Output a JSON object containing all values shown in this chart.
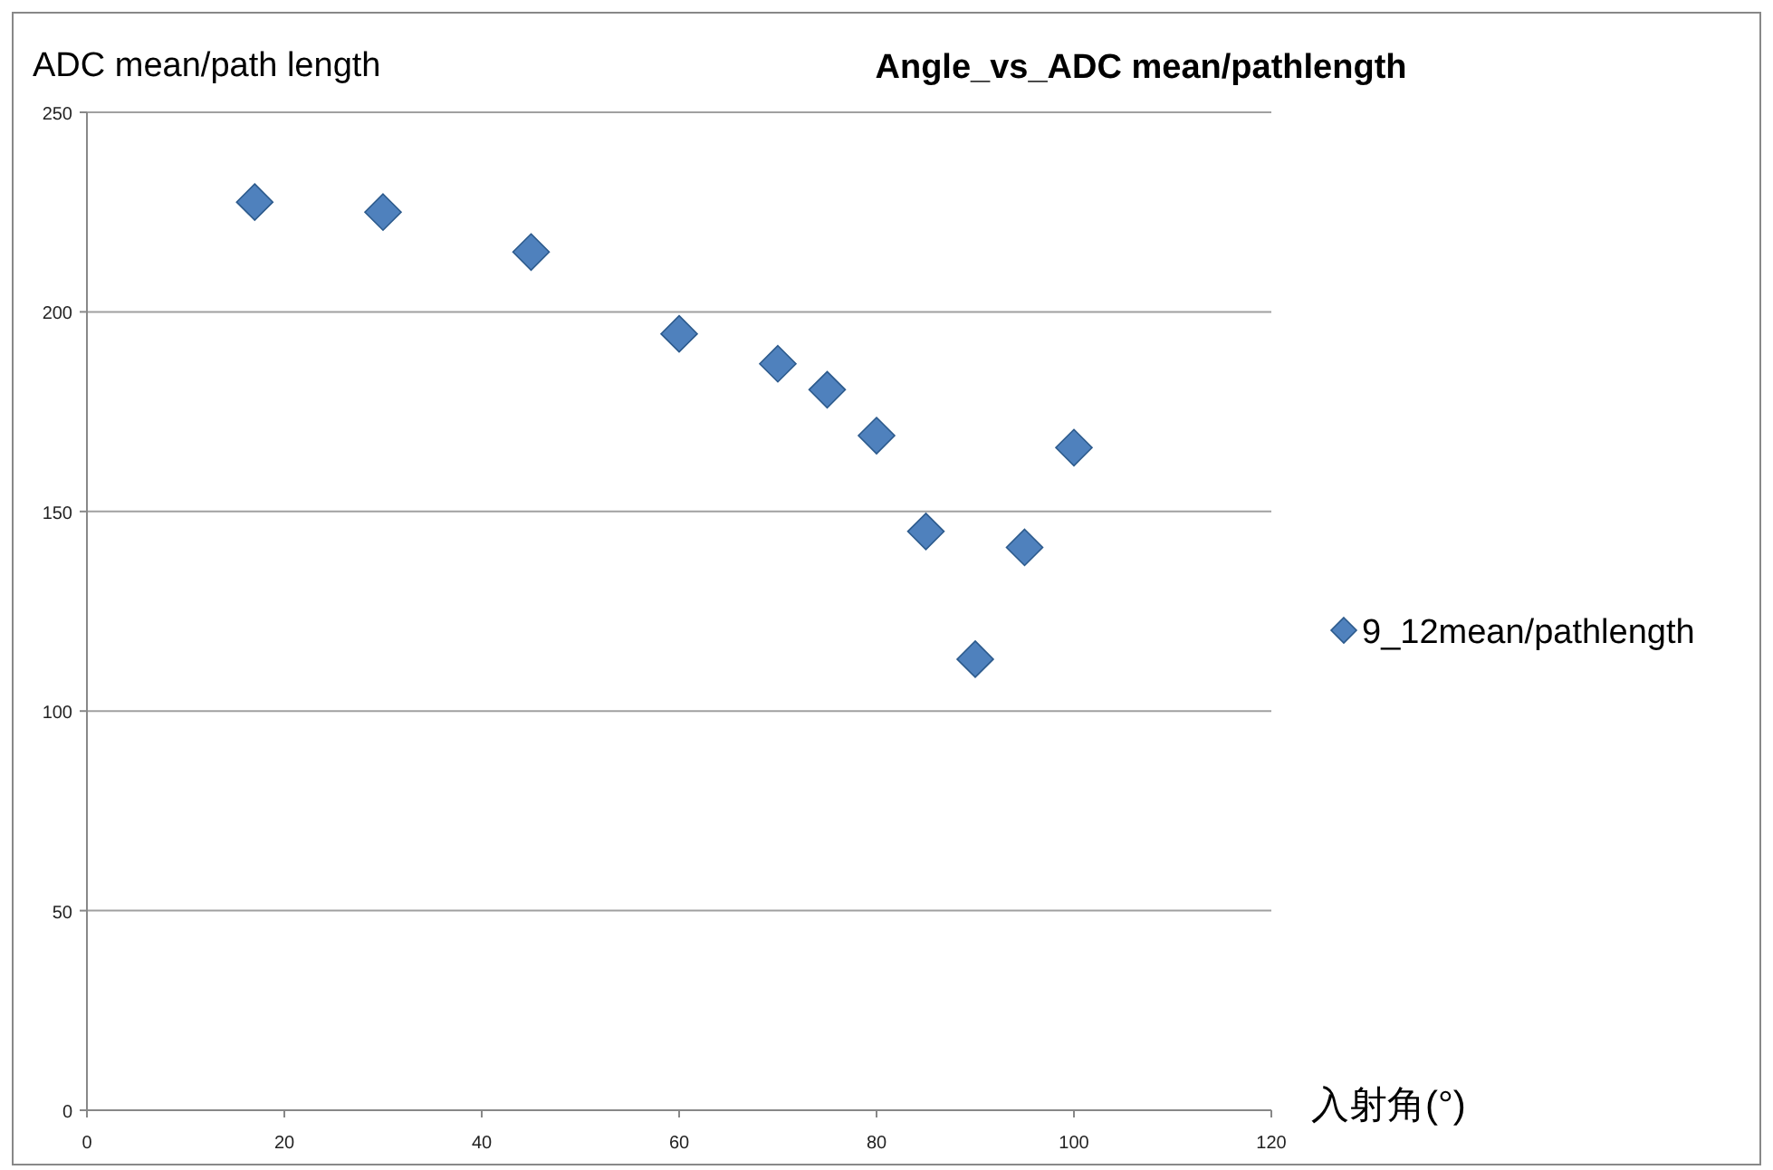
{
  "chart_data": {
    "type": "scatter",
    "title": "Angle_vs_ADC mean/pathlength",
    "xlabel": "入射角(°)",
    "ylabel": "ADC mean/path length",
    "x": [
      17,
      30,
      45,
      60,
      70,
      75,
      80,
      85,
      90,
      95,
      100
    ],
    "series": [
      {
        "name": "9_12mean/pathlength",
        "color": "#4f81bd",
        "values": [
          227.5,
          225,
          215,
          194.5,
          187,
          180.5,
          169,
          145,
          113,
          141,
          166
        ]
      }
    ],
    "xlim": [
      0,
      120
    ],
    "xticks": [
      0,
      20,
      40,
      60,
      80,
      100,
      120
    ],
    "ylim": [
      0,
      250
    ],
    "yticks": [
      0,
      50,
      100,
      150,
      200,
      250
    ],
    "grid": "y",
    "legend": "right",
    "marker": "diamond"
  }
}
